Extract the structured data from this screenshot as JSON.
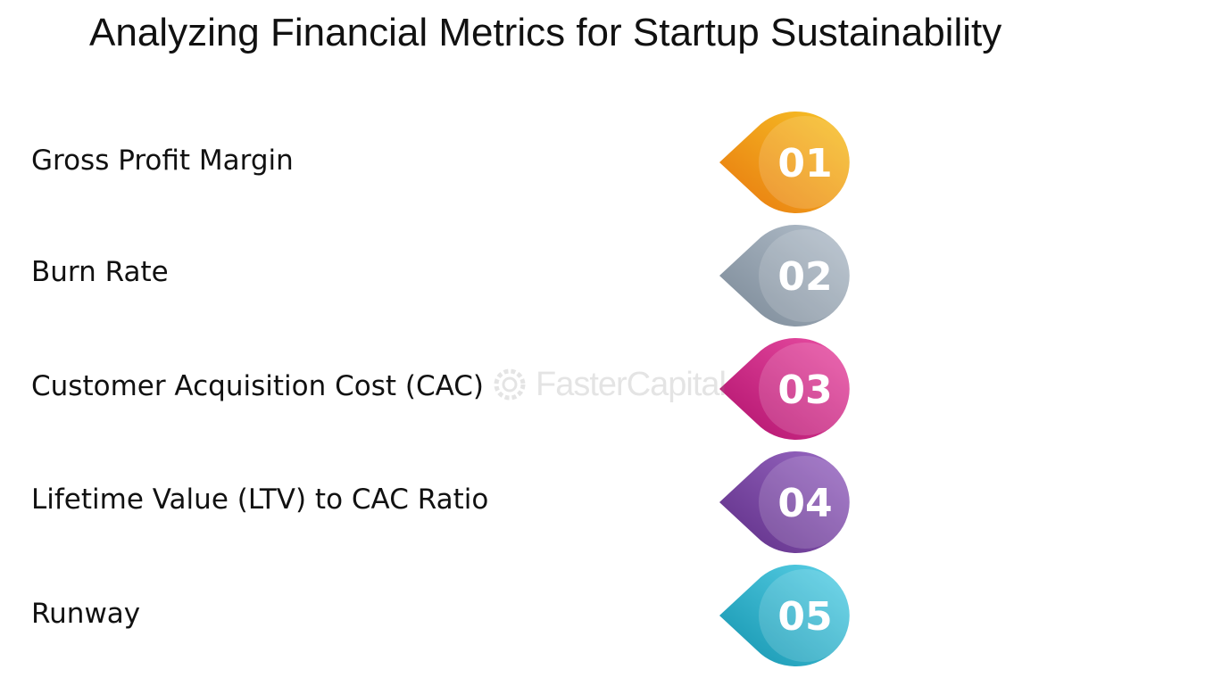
{
  "title": "Analyzing Financial Metrics for Startup Sustainability",
  "items": [
    {
      "label": "Gross Profit Margin",
      "number": "01",
      "color_light": "#f7c427",
      "color_dark": "#e8770e"
    },
    {
      "label": "Burn Rate",
      "number": "02",
      "color_light": "#b4c0cc",
      "color_dark": "#7a8896"
    },
    {
      "label": "Customer Acquisition Cost (CAC)",
      "number": "03",
      "color_light": "#ea4fa4",
      "color_dark": "#b0106c"
    },
    {
      "label": "Lifetime Value (LTV) to CAC Ratio",
      "number": "04",
      "color_light": "#9a6ac4",
      "color_dark": "#5e2d86"
    },
    {
      "label": "Runway",
      "number": "05",
      "color_light": "#5cd2e8",
      "color_dark": "#1293ae"
    }
  ],
  "watermark": {
    "text": "FasterCapital",
    "icon": "gear-logo-icon"
  }
}
